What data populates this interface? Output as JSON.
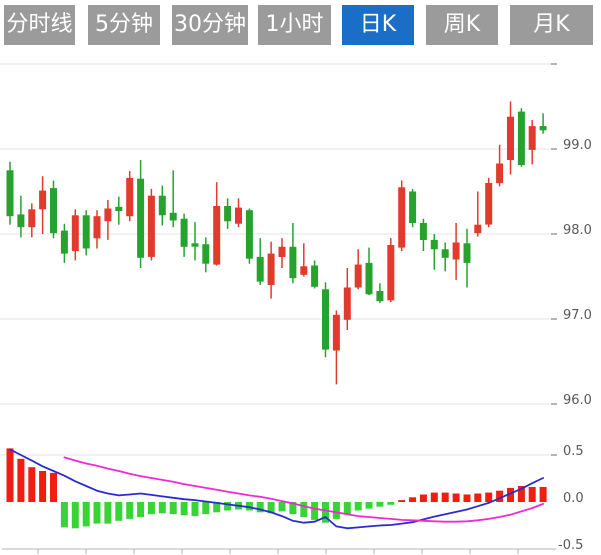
{
  "toolbar": {
    "tabs": [
      {
        "label": "分时线",
        "active": false
      },
      {
        "label": "5分钟",
        "active": false
      },
      {
        "label": "30分钟",
        "active": false
      },
      {
        "label": "1小时",
        "active": false
      },
      {
        "label": "日K",
        "active": true
      },
      {
        "label": "周K",
        "active": false
      },
      {
        "label": "月K",
        "active": false
      }
    ],
    "colors": {
      "tab_bg": "#9b9b9b",
      "tab_active_bg": "#1b6ec8",
      "tab_text": "#ffffff"
    }
  },
  "chart_data": [
    {
      "type": "candlestick",
      "ylim": [
        95.4,
        100.15
      ],
      "y_gridlines": [
        100.0,
        99.0,
        98.0,
        97.0,
        96.0
      ],
      "y_tick_values": [
        99.0,
        98.0,
        97.0,
        96.0
      ],
      "y_tick_labels": [
        "99.0",
        "98.0",
        "97.0",
        "96.0"
      ],
      "grid": true,
      "legend": "none",
      "up_color": "#e23a2c",
      "down_color": "#28a22e",
      "candle_format": [
        "open",
        "close",
        "high",
        "low"
      ],
      "candles": [
        [
          98.75,
          98.21,
          98.85,
          98.11
        ],
        [
          98.23,
          98.08,
          98.45,
          97.96
        ],
        [
          98.08,
          98.29,
          98.36,
          97.96
        ],
        [
          98.29,
          98.51,
          98.68,
          98.0
        ],
        [
          98.54,
          98.01,
          98.63,
          97.95
        ],
        [
          98.04,
          97.77,
          98.12,
          97.66
        ],
        [
          97.8,
          98.22,
          98.29,
          97.69
        ],
        [
          98.22,
          97.83,
          98.28,
          97.75
        ],
        [
          97.95,
          98.21,
          98.28,
          97.83
        ],
        [
          98.15,
          98.3,
          98.4,
          97.93
        ],
        [
          98.32,
          98.27,
          98.44,
          98.11
        ],
        [
          98.21,
          98.66,
          98.74,
          98.15
        ],
        [
          98.65,
          97.72,
          98.87,
          97.6
        ],
        [
          97.73,
          98.45,
          98.53,
          97.69
        ],
        [
          98.45,
          98.22,
          98.57,
          98.1
        ],
        [
          98.25,
          98.16,
          98.75,
          98.08
        ],
        [
          98.18,
          97.85,
          98.24,
          97.73
        ],
        [
          97.89,
          97.85,
          98.14,
          97.69
        ],
        [
          97.88,
          97.65,
          97.96,
          97.55
        ],
        [
          97.64,
          98.33,
          98.61,
          97.63
        ],
        [
          98.33,
          98.15,
          98.42,
          98.06
        ],
        [
          98.12,
          98.31,
          98.42,
          98.08
        ],
        [
          98.28,
          97.71,
          98.3,
          97.65
        ],
        [
          97.73,
          97.44,
          97.95,
          97.4
        ],
        [
          97.4,
          97.77,
          97.91,
          97.24
        ],
        [
          97.73,
          97.85,
          97.95,
          97.6
        ],
        [
          97.85,
          97.48,
          98.13,
          97.42
        ],
        [
          97.52,
          97.62,
          97.89,
          97.5
        ],
        [
          97.63,
          97.38,
          97.69,
          97.36
        ],
        [
          97.35,
          96.64,
          97.43,
          96.55
        ],
        [
          96.63,
          97.05,
          97.1,
          96.23
        ],
        [
          96.99,
          97.37,
          97.6,
          96.87
        ],
        [
          97.37,
          97.64,
          97.82,
          97.35
        ],
        [
          97.66,
          97.29,
          97.84,
          97.28
        ],
        [
          97.33,
          97.21,
          97.42,
          97.19
        ],
        [
          97.22,
          97.87,
          97.95,
          97.2
        ],
        [
          97.84,
          98.55,
          98.63,
          97.8
        ],
        [
          98.5,
          98.13,
          98.53,
          98.08
        ],
        [
          98.13,
          97.93,
          98.18,
          97.8
        ],
        [
          97.93,
          97.82,
          98.0,
          97.58
        ],
        [
          97.82,
          97.72,
          97.9,
          97.56
        ],
        [
          97.7,
          97.9,
          98.13,
          97.46
        ],
        [
          97.89,
          97.66,
          98.06,
          97.37
        ],
        [
          98.01,
          98.11,
          98.5,
          97.97
        ],
        [
          98.11,
          98.6,
          98.66,
          98.08
        ],
        [
          98.6,
          98.83,
          99.05,
          98.56
        ],
        [
          98.87,
          99.38,
          99.56,
          98.7
        ],
        [
          99.44,
          98.81,
          99.48,
          98.79
        ],
        [
          98.99,
          99.27,
          99.34,
          98.82
        ],
        [
          99.27,
          99.22,
          99.42,
          99.18
        ]
      ]
    },
    {
      "type": "bar",
      "ylim": [
        -0.56,
        0.6
      ],
      "y_gridlines": [
        0.5
      ],
      "y_tick_values": [
        0.5,
        0.0,
        -0.5
      ],
      "y_tick_labels": [
        "0.5",
        "0.0",
        "-0.5"
      ],
      "positive_color": "#f21d12",
      "negative_color": "#38d337",
      "histogram": [
        0.57,
        0.46,
        0.37,
        0.33,
        0.31,
        -0.27,
        -0.28,
        -0.26,
        -0.23,
        -0.23,
        -0.2,
        -0.18,
        -0.16,
        -0.13,
        -0.12,
        -0.13,
        -0.14,
        -0.15,
        -0.13,
        -0.11,
        -0.09,
        -0.08,
        -0.09,
        -0.11,
        -0.12,
        -0.1,
        -0.13,
        -0.16,
        -0.19,
        -0.22,
        -0.18,
        -0.13,
        -0.09,
        -0.07,
        -0.05,
        -0.03,
        0.02,
        0.05,
        0.08,
        0.1,
        0.1,
        0.09,
        0.08,
        0.09,
        0.1,
        0.12,
        0.15,
        0.17,
        0.16,
        0.16
      ],
      "series": [
        {
          "name": "DIF",
          "color": "#2b2bd2",
          "start_index": 0,
          "values": [
            0.56,
            0.5,
            0.44,
            0.38,
            0.33,
            0.28,
            0.22,
            0.17,
            0.12,
            0.09,
            0.07,
            0.08,
            0.09,
            0.075,
            0.06,
            0.045,
            0.03,
            0.02,
            0.005,
            -0.01,
            -0.025,
            -0.04,
            -0.055,
            -0.08,
            -0.11,
            -0.15,
            -0.2,
            -0.22,
            -0.21,
            -0.16,
            -0.26,
            -0.28,
            -0.27,
            -0.26,
            -0.25,
            -0.245,
            -0.23,
            -0.215,
            -0.185,
            -0.155,
            -0.13,
            -0.105,
            -0.08,
            -0.045,
            -0.01,
            0.04,
            0.09,
            0.14,
            0.2,
            0.255
          ]
        },
        {
          "name": "DEA",
          "color": "#ee2ad4",
          "start_index": 5,
          "values": [
            0.475,
            0.44,
            0.41,
            0.385,
            0.355,
            0.33,
            0.3,
            0.275,
            0.255,
            0.235,
            0.215,
            0.19,
            0.17,
            0.15,
            0.13,
            0.11,
            0.09,
            0.07,
            0.055,
            0.035,
            0.01,
            -0.015,
            -0.045,
            -0.07,
            -0.09,
            -0.11,
            -0.13,
            -0.15,
            -0.16,
            -0.17,
            -0.18,
            -0.19,
            -0.195,
            -0.2,
            -0.205,
            -0.21,
            -0.21,
            -0.205,
            -0.195,
            -0.18,
            -0.16,
            -0.135,
            -0.1,
            -0.065,
            -0.02
          ]
        }
      ]
    }
  ]
}
